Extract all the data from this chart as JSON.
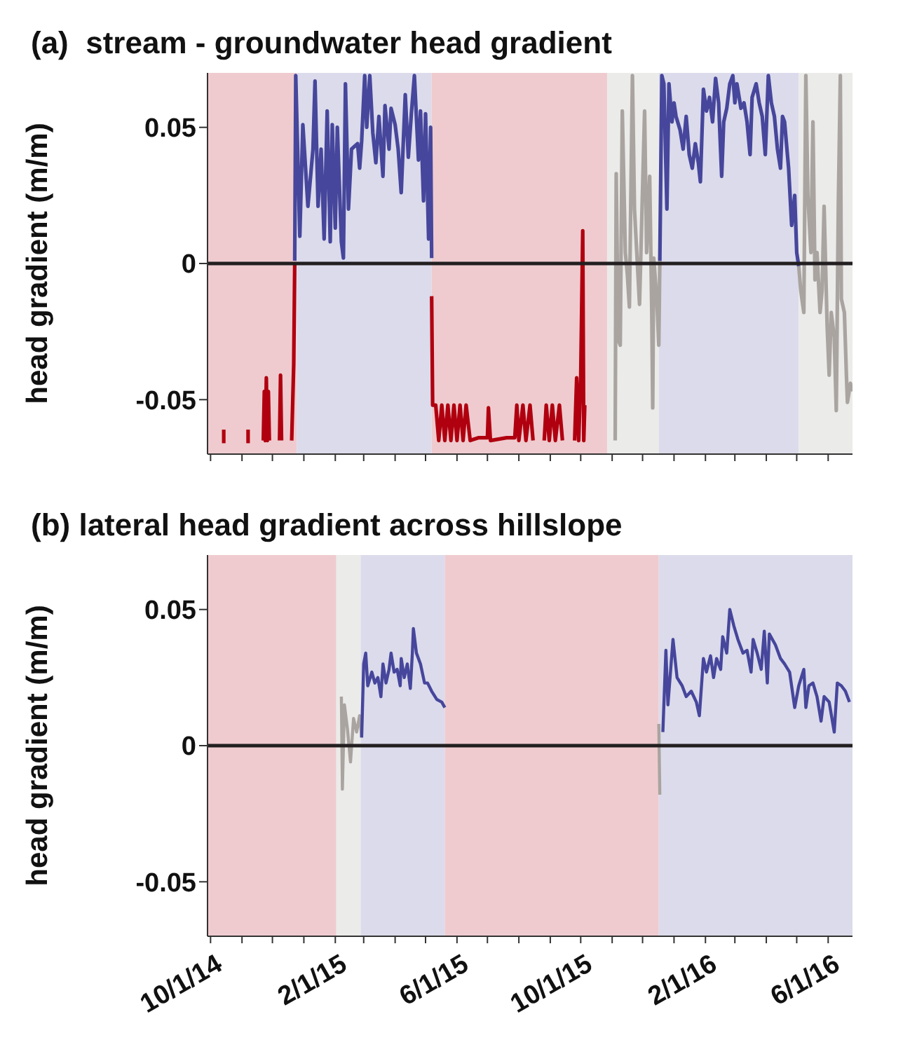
{
  "chart_data": [
    {
      "type": "line",
      "title": "(a)  stream - groundwater head gradient",
      "ylabel": "head gradient (m/m)",
      "xlim": [
        "2014-09-28",
        "2016-06-25"
      ],
      "ylim": [
        -0.07,
        0.07
      ],
      "yticks": [
        -0.05,
        0,
        0.05
      ],
      "tick_labels": "y",
      "xticks": [
        {
          "value": "2014-10-01",
          "label": null
        },
        {
          "value": "2014-11-01",
          "label": null
        },
        {
          "value": "2014-12-01",
          "label": null
        },
        {
          "value": "2015-01-01",
          "label": null
        },
        {
          "value": "2015-02-01",
          "label": null
        },
        {
          "value": "2015-03-01",
          "label": null
        },
        {
          "value": "2015-04-01",
          "label": null
        },
        {
          "value": "2015-05-01",
          "label": null
        },
        {
          "value": "2015-06-01",
          "label": null
        },
        {
          "value": "2015-07-01",
          "label": null
        },
        {
          "value": "2015-08-01",
          "label": null
        },
        {
          "value": "2015-09-01",
          "label": null
        },
        {
          "value": "2015-10-01",
          "label": null
        },
        {
          "value": "2015-11-01",
          "label": null
        },
        {
          "value": "2015-12-01",
          "label": null
        },
        {
          "value": "2016-01-01",
          "label": null
        },
        {
          "value": "2016-02-01",
          "label": null
        },
        {
          "value": "2016-03-01",
          "label": null
        },
        {
          "value": "2016-04-01",
          "label": null
        },
        {
          "value": "2016-05-01",
          "label": null
        },
        {
          "value": "2016-06-01",
          "label": null
        }
      ],
      "bands": [
        {
          "axis": "x",
          "from": "2014-09-28",
          "to": "2014-12-25",
          "color": "#efcbcf"
        },
        {
          "axis": "x",
          "from": "2014-12-25",
          "to": "2015-05-07",
          "color": "#dbdbeb"
        },
        {
          "axis": "x",
          "from": "2015-05-07",
          "to": "2015-10-27",
          "color": "#efcbcf"
        },
        {
          "axis": "x",
          "from": "2015-10-27",
          "to": "2015-12-17",
          "color": "#ebebea"
        },
        {
          "axis": "x",
          "from": "2015-12-17",
          "to": "2016-05-03",
          "color": "#dbdbeb"
        },
        {
          "axis": "x",
          "from": "2016-05-03",
          "to": "2016-06-25",
          "color": "#ebebea"
        }
      ],
      "ref_lines": [
        {
          "axis": "y",
          "value": 0,
          "color": "#231f20"
        }
      ],
      "series": [
        {
          "color": "#b0000f",
          "x": [
            "2014-10-14",
            "2014-10-14"
          ],
          "values": [
            -0.066,
            -0.061
          ]
        },
        {
          "color": "#b0000f",
          "x": [
            "2014-11-07",
            "2014-11-07"
          ],
          "values": [
            -0.066,
            -0.061
          ]
        },
        {
          "color": "#b0000f",
          "x": [
            "2014-11-22",
            "2014-11-23",
            "2014-11-24",
            "2014-11-25",
            "2014-11-26",
            "2014-11-27",
            "2014-11-28",
            "2014-12-01",
            "2014-12-08",
            "2014-12-09",
            "2014-12-10",
            "2014-12-15",
            "2014-12-20",
            "2014-12-21",
            "2014-12-22",
            "2014-12-23"
          ],
          "values": [
            -0.065,
            -0.047,
            -0.065,
            -0.042,
            -0.065,
            -0.047,
            -0.065,
            null,
            -0.065,
            -0.041,
            -0.065,
            null,
            -0.065,
            -0.051,
            -0.037,
            0.0
          ]
        },
        {
          "color": "#46469c",
          "x": [
            "2014-12-23",
            "2014-12-24",
            "2014-12-28",
            "2014-12-31",
            "2015-01-05",
            "2015-01-10",
            "2015-01-12",
            "2015-01-15",
            "2015-01-18",
            "2015-01-21",
            "2015-01-24",
            "2015-01-27",
            "2015-01-29",
            "2015-02-01",
            "2015-02-03",
            "2015-02-07",
            "2015-02-09",
            "2015-02-11",
            "2015-02-14",
            "2015-02-17",
            "2015-02-23",
            "2015-02-25",
            "2015-02-27",
            "2015-03-02",
            "2015-03-04",
            "2015-03-07",
            "2015-03-10",
            "2015-03-13",
            "2015-03-16",
            "2015-03-20",
            "2015-03-22",
            "2015-03-26",
            "2015-03-28",
            "2015-04-01",
            "2015-04-04",
            "2015-04-07",
            "2015-04-11",
            "2015-04-14",
            "2015-04-17",
            "2015-04-20",
            "2015-04-24",
            "2015-04-26",
            "2015-04-29",
            "2015-05-01",
            "2015-05-04",
            "2015-05-06",
            "2015-05-07"
          ],
          "values": [
            0.001,
            0.069,
            0.01,
            0.051,
            0.021,
            0.042,
            0.067,
            0.021,
            0.042,
            0.009,
            0.056,
            0.008,
            0.051,
            0.013,
            0.05,
            0.008,
            0.002,
            0.066,
            0.02,
            0.042,
            0.044,
            0.035,
            0.045,
            0.069,
            0.05,
            0.069,
            0.048,
            0.037,
            0.054,
            0.032,
            0.058,
            0.042,
            0.057,
            0.051,
            0.042,
            0.026,
            0.062,
            0.039,
            0.055,
            0.069,
            0.038,
            0.056,
            0.023,
            0.055,
            0.009,
            0.05,
            0.002
          ]
        },
        {
          "color": "#b0000f",
          "x": [
            "2015-05-07",
            "2015-05-08",
            "2015-05-11",
            "2015-05-14",
            "2015-05-17",
            "2015-05-20",
            "2015-05-23",
            "2015-05-26",
            "2015-05-29",
            "2015-06-01",
            "2015-06-04",
            "2015-06-07",
            "2015-06-10",
            "2015-06-14",
            "2015-06-22",
            "2015-07-01",
            "2015-07-02",
            "2015-07-04",
            "2015-07-20",
            "2015-07-28",
            "2015-07-30",
            "2015-08-01",
            "2015-08-05",
            "2015-08-08",
            "2015-08-12",
            "2015-08-15",
            "2015-08-20",
            "2015-08-26",
            "2015-08-28",
            "2015-08-31",
            "2015-09-03",
            "2015-09-06",
            "2015-09-10",
            "2015-09-13",
            "2015-09-19",
            "2015-09-25",
            "2015-09-27",
            "2015-09-29",
            "2015-10-01",
            "2015-10-03",
            "2015-10-04",
            "2015-10-05"
          ],
          "values": [
            -0.012,
            -0.052,
            -0.052,
            -0.065,
            -0.052,
            -0.065,
            -0.052,
            -0.065,
            -0.052,
            -0.065,
            -0.052,
            -0.065,
            -0.052,
            -0.065,
            -0.064,
            -0.064,
            -0.053,
            -0.065,
            -0.064,
            -0.064,
            -0.052,
            -0.065,
            -0.052,
            -0.065,
            -0.052,
            -0.065,
            null,
            -0.065,
            -0.052,
            -0.065,
            -0.052,
            -0.065,
            -0.052,
            -0.065,
            null,
            -0.065,
            -0.042,
            -0.065,
            -0.042,
            0.012,
            -0.065,
            -0.052
          ]
        },
        {
          "color": "#a9a4a0",
          "x": [
            "2015-11-04",
            "2015-11-05",
            "2015-11-07",
            "2015-11-09",
            "2015-11-11",
            "2015-11-14",
            "2015-11-16",
            "2015-11-18",
            "2015-11-21",
            "2015-11-23",
            "2015-11-25",
            "2015-11-28",
            "2015-12-03",
            "2015-12-05",
            "2015-12-08",
            "2015-12-10",
            "2015-12-11",
            "2015-12-12",
            "2015-12-15",
            "2015-12-17",
            "2015-12-18"
          ],
          "values": [
            -0.065,
            0.033,
            -0.028,
            -0.03,
            0.056,
            0.004,
            -0.004,
            -0.016,
            0.069,
            0.02,
            0.006,
            -0.015,
            0.056,
            0.004,
            0.032,
            -0.016,
            -0.053,
            0.002,
            -0.013,
            -0.03,
            0.001
          ]
        },
        {
          "color": "#46469c",
          "x": [
            "2015-12-18",
            "2015-12-20",
            "2015-12-22",
            "2015-12-25",
            "2015-12-27",
            "2015-12-30",
            "2016-01-01",
            "2016-01-03",
            "2016-01-07",
            "2016-01-10",
            "2016-01-13",
            "2016-01-16",
            "2016-01-19",
            "2016-01-22",
            "2016-01-25",
            "2016-01-27",
            "2016-01-30",
            "2016-02-02",
            "2016-02-05",
            "2016-02-08",
            "2016-02-11",
            "2016-02-14",
            "2016-02-17",
            "2016-02-19",
            "2016-02-22",
            "2016-02-25",
            "2016-02-28",
            "2016-03-01",
            "2016-03-03",
            "2016-03-07",
            "2016-03-10",
            "2016-03-13",
            "2016-03-16",
            "2016-03-18",
            "2016-03-22",
            "2016-03-25",
            "2016-03-28",
            "2016-03-31",
            "2016-04-03",
            "2016-04-06",
            "2016-04-09",
            "2016-04-12",
            "2016-04-15",
            "2016-04-17",
            "2016-04-19",
            "2016-04-23",
            "2016-04-26",
            "2016-04-29",
            "2016-05-01",
            "2016-05-03"
          ],
          "values": [
            0.001,
            0.069,
            0.066,
            0.02,
            0.066,
            0.052,
            0.059,
            0.054,
            0.049,
            0.042,
            0.054,
            0.04,
            0.035,
            0.044,
            0.037,
            0.03,
            0.064,
            0.056,
            0.061,
            0.052,
            0.068,
            0.059,
            0.032,
            0.052,
            0.057,
            0.066,
            0.069,
            0.059,
            0.066,
            0.057,
            0.059,
            0.052,
            0.04,
            0.061,
            0.066,
            0.059,
            0.054,
            0.04,
            0.069,
            0.059,
            0.054,
            0.042,
            0.035,
            0.054,
            0.052,
            0.035,
            0.014,
            0.025,
            0.004,
            -0.001
          ]
        },
        {
          "color": "#a9a4a0",
          "x": [
            "2016-05-03",
            "2016-05-05",
            "2016-05-08",
            "2016-05-10",
            "2016-05-12",
            "2016-05-15",
            "2016-05-17",
            "2016-05-19",
            "2016-05-21",
            "2016-05-24",
            "2016-05-26",
            "2016-05-28",
            "2016-05-31",
            "2016-06-02",
            "2016-06-04",
            "2016-06-07",
            "2016-06-09",
            "2016-06-11",
            "2016-06-13",
            "2016-06-14",
            "2016-06-17",
            "2016-06-19",
            "2016-06-20",
            "2016-06-23",
            "2016-06-24"
          ],
          "values": [
            -0.001,
            -0.01,
            -0.018,
            0.069,
            0.025,
            0.004,
            0.052,
            -0.006,
            0.004,
            -0.018,
            -0.01,
            0.021,
            -0.023,
            -0.041,
            -0.018,
            -0.027,
            -0.054,
            0.021,
            0.069,
            -0.013,
            -0.018,
            -0.041,
            -0.051,
            -0.044,
            -0.047
          ]
        }
      ]
    },
    {
      "type": "line",
      "title": "(b) lateral head gradient across hillslope",
      "ylabel": "head gradient (m/m)",
      "xlim": [
        "2014-09-28",
        "2016-06-25"
      ],
      "ylim": [
        -0.07,
        0.07
      ],
      "yticks": [
        -0.05,
        0,
        0.05
      ],
      "xticks": [
        {
          "value": "2014-10-01",
          "label": "10/1/14"
        },
        {
          "value": "2014-11-01",
          "label": null
        },
        {
          "value": "2014-12-01",
          "label": null
        },
        {
          "value": "2015-01-01",
          "label": null
        },
        {
          "value": "2015-02-01",
          "label": "2/1/15"
        },
        {
          "value": "2015-03-01",
          "label": null
        },
        {
          "value": "2015-04-01",
          "label": null
        },
        {
          "value": "2015-05-01",
          "label": null
        },
        {
          "value": "2015-06-01",
          "label": "6/1/15"
        },
        {
          "value": "2015-07-01",
          "label": null
        },
        {
          "value": "2015-08-01",
          "label": null
        },
        {
          "value": "2015-09-01",
          "label": null
        },
        {
          "value": "2015-10-01",
          "label": "10/1/15"
        },
        {
          "value": "2015-11-01",
          "label": null
        },
        {
          "value": "2015-12-01",
          "label": null
        },
        {
          "value": "2016-01-01",
          "label": null
        },
        {
          "value": "2016-02-01",
          "label": "2/1/16"
        },
        {
          "value": "2016-03-01",
          "label": null
        },
        {
          "value": "2016-04-01",
          "label": null
        },
        {
          "value": "2016-05-01",
          "label": null
        },
        {
          "value": "2016-06-01",
          "label": "6/1/16"
        }
      ],
      "bands": [
        {
          "axis": "x",
          "from": "2014-09-28",
          "to": "2015-02-02",
          "color": "#efcbcf"
        },
        {
          "axis": "x",
          "from": "2015-02-02",
          "to": "2015-02-26",
          "color": "#ebebea"
        },
        {
          "axis": "x",
          "from": "2015-02-26",
          "to": "2015-05-20",
          "color": "#dbdbeb"
        },
        {
          "axis": "x",
          "from": "2015-05-20",
          "to": "2015-12-17",
          "color": "#efcbcf"
        },
        {
          "axis": "x",
          "from": "2015-12-17",
          "to": "2016-06-25",
          "color": "#dbdbeb"
        }
      ],
      "ref_lines": [
        {
          "axis": "y",
          "value": 0,
          "color": "#231f20"
        }
      ],
      "series": [
        {
          "color": "#a9a4a0",
          "x": [
            "2015-02-07",
            "2015-02-08",
            "2015-02-10",
            "2015-02-13",
            "2015-02-16",
            "2015-02-19",
            "2015-02-22",
            "2015-02-25",
            "2015-02-27"
          ],
          "values": [
            0.018,
            -0.016,
            0.015,
            0.006,
            -0.006,
            0.01,
            0.005,
            0.011,
            0.003
          ]
        },
        {
          "color": "#46469c",
          "x": [
            "2015-02-27",
            "2015-03-01",
            "2015-03-03",
            "2015-03-05",
            "2015-03-09",
            "2015-03-12",
            "2015-03-15",
            "2015-03-18",
            "2015-03-20",
            "2015-03-23",
            "2015-03-26",
            "2015-03-28",
            "2015-03-31",
            "2015-04-03",
            "2015-04-06",
            "2015-04-07",
            "2015-04-10",
            "2015-04-13",
            "2015-04-16",
            "2015-04-18",
            "2015-04-19",
            "2015-04-22",
            "2015-04-26",
            "2015-04-30",
            "2015-05-03",
            "2015-05-07",
            "2015-05-12",
            "2015-05-17",
            "2015-05-20"
          ],
          "values": [
            0.003,
            0.03,
            0.034,
            0.022,
            0.027,
            0.023,
            0.025,
            0.018,
            0.03,
            0.023,
            0.028,
            0.034,
            0.027,
            0.028,
            0.022,
            0.032,
            0.025,
            0.03,
            0.021,
            0.034,
            0.043,
            0.034,
            0.03,
            0.023,
            0.023,
            0.02,
            0.017,
            0.016,
            0.014
          ]
        },
        {
          "color": "#a9a4a0",
          "x": [
            "2015-12-17",
            "2015-12-18"
          ],
          "values": [
            0.008,
            -0.018
          ]
        },
        {
          "color": "#46469c",
          "x": [
            "2015-12-21",
            "2015-12-24",
            "2015-12-26",
            "2015-12-31",
            "2016-01-04",
            "2016-01-09",
            "2016-01-13",
            "2016-01-18",
            "2016-01-23",
            "2016-01-26",
            "2016-01-30",
            "2016-02-02",
            "2016-02-06",
            "2016-02-09",
            "2016-02-12",
            "2016-02-16",
            "2016-02-18",
            "2016-02-22",
            "2016-02-25",
            "2016-02-29",
            "2016-03-04",
            "2016-03-09",
            "2016-03-13",
            "2016-03-17",
            "2016-03-19",
            "2016-03-23",
            "2016-03-27",
            "2016-03-30",
            "2016-04-02",
            "2016-04-04",
            "2016-04-10",
            "2016-04-15",
            "2016-04-19",
            "2016-04-24",
            "2016-04-29",
            "2016-05-03",
            "2016-05-08",
            "2016-05-10",
            "2016-05-13",
            "2016-05-17",
            "2016-05-21",
            "2016-05-25",
            "2016-05-28",
            "2016-06-02",
            "2016-06-07",
            "2016-06-10",
            "2016-06-14",
            "2016-06-18",
            "2016-06-22"
          ],
          "values": [
            0.005,
            0.035,
            0.015,
            0.039,
            0.025,
            0.022,
            0.018,
            0.02,
            0.016,
            0.011,
            0.032,
            0.027,
            0.033,
            0.025,
            0.032,
            0.028,
            0.04,
            0.034,
            0.05,
            0.044,
            0.039,
            0.034,
            0.035,
            0.027,
            0.039,
            0.034,
            0.028,
            0.042,
            0.023,
            0.041,
            0.037,
            0.032,
            0.03,
            0.027,
            0.014,
            0.022,
            0.028,
            0.014,
            0.022,
            0.023,
            0.018,
            0.009,
            0.018,
            0.016,
            0.005,
            0.023,
            0.022,
            0.02,
            0.016
          ]
        }
      ]
    }
  ]
}
